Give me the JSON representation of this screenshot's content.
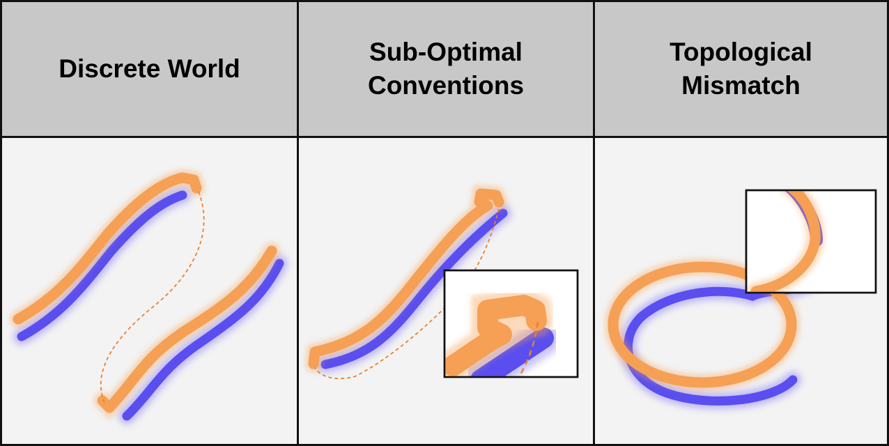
{
  "columns": [
    {
      "title": "Discrete World"
    },
    {
      "title": "Sub-Optimal\nConventions"
    },
    {
      "title": "Topological\nMismatch"
    }
  ],
  "colors": {
    "orange_strand": "#f5a055",
    "blue_strand": "#5a4ef0",
    "dashed_link": "#ee7f2a",
    "header_bg": "#c8c8c8",
    "panel_bg": "#f3f3f3",
    "border": "#111111"
  }
}
